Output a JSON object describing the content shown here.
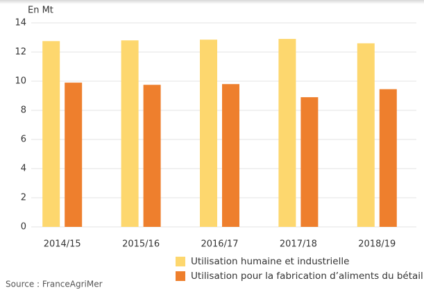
{
  "chart_data": {
    "type": "bar",
    "y_axis_label": "En Mt",
    "categories": [
      "2014/15",
      "2015/16",
      "2016/17",
      "2017/18",
      "2018/19"
    ],
    "series": [
      {
        "name": "Utilisation humaine et industrielle",
        "color": "#fdd76e",
        "values": [
          12.75,
          12.8,
          12.85,
          12.9,
          12.6
        ]
      },
      {
        "name": "Utilisation pour la fabrication d’aliments du bétail",
        "color": "#ee7f2d",
        "values": [
          9.9,
          9.75,
          9.8,
          8.9,
          9.45
        ]
      }
    ],
    "ylim": [
      0,
      14
    ],
    "yticks": [
      0,
      2,
      4,
      6,
      8,
      10,
      12,
      14
    ],
    "grid": true,
    "source": "Source : FranceAgriMer"
  }
}
